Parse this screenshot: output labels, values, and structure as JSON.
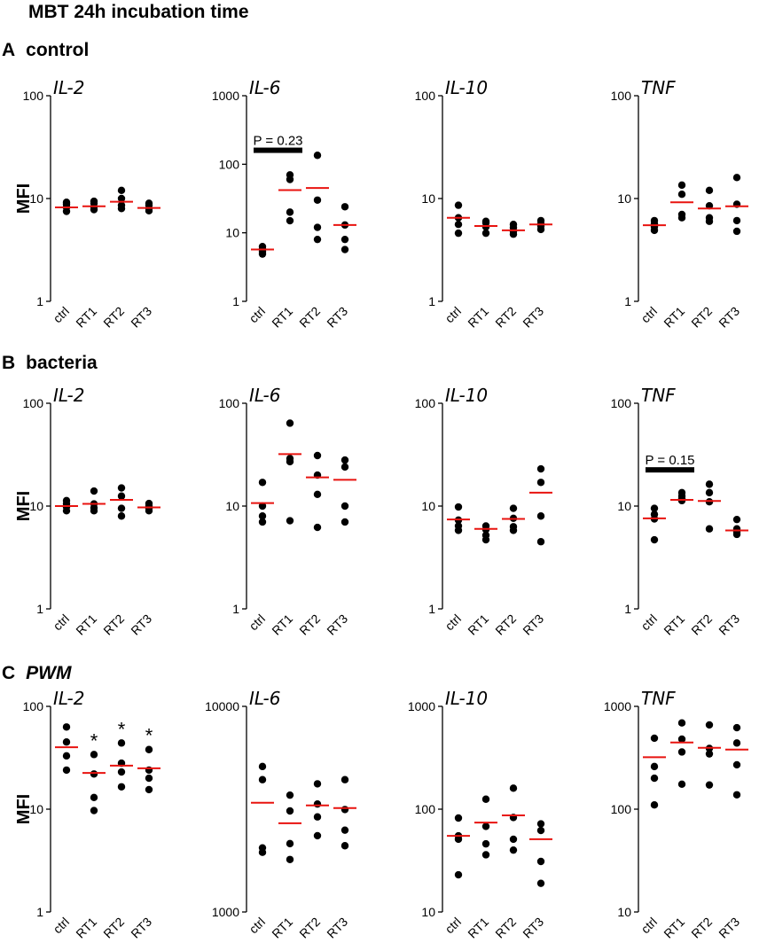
{
  "figure_title": "MBT 24h incubation time",
  "rows": [
    {
      "letter": "A",
      "condition": "control",
      "italic": false
    },
    {
      "letter": "B",
      "condition": "bacteria",
      "italic": false
    },
    {
      "letter": "C",
      "condition": "PWM",
      "italic": true
    }
  ],
  "chart_data": [
    {
      "type": "scatter",
      "row": "A",
      "title": "IL-2",
      "ylabel": "MFI",
      "yscale": "log",
      "ylim": [
        1,
        100
      ],
      "yticks": [
        1,
        10,
        100
      ],
      "categories": [
        "ctrl",
        "RT1",
        "RT2",
        "RT3"
      ],
      "points": [
        [
          7.5,
          8.2,
          8.8,
          9.2
        ],
        [
          7.8,
          8.3,
          9.0,
          9.4
        ],
        [
          8.0,
          8.6,
          10.0,
          12.0
        ],
        [
          7.6,
          8.0,
          8.6,
          9.0
        ]
      ],
      "medians": [
        8.2,
        8.4,
        9.3,
        8.1
      ],
      "annotations": [],
      "significance": []
    },
    {
      "type": "scatter",
      "row": "A",
      "title": "IL-6",
      "ylabel": "",
      "yscale": "log",
      "ylim": [
        1,
        1000
      ],
      "yticks": [
        1,
        10,
        100,
        1000
      ],
      "categories": [
        "ctrl",
        "RT1",
        "RT2",
        "RT3"
      ],
      "points": [
        [
          4.9,
          5.3,
          5.8,
          6.3
        ],
        [
          15,
          20,
          60,
          70
        ],
        [
          8,
          12,
          30,
          135
        ],
        [
          5.7,
          8,
          13,
          24
        ]
      ],
      "medians": [
        5.7,
        42,
        45,
        13
      ],
      "annotations": [
        {
          "text": "P = 0.23",
          "from": 0,
          "to": 1,
          "y": 160
        }
      ],
      "significance": []
    },
    {
      "type": "scatter",
      "row": "A",
      "title": "IL-10",
      "ylabel": "",
      "yscale": "log",
      "ylim": [
        1,
        100
      ],
      "yticks": [
        1,
        10,
        100
      ],
      "categories": [
        "ctrl",
        "RT1",
        "RT2",
        "RT3"
      ],
      "points": [
        [
          4.6,
          5.6,
          6.5,
          8.6
        ],
        [
          4.6,
          5.3,
          5.8,
          6.0
        ],
        [
          4.5,
          4.8,
          5.2,
          5.6
        ],
        [
          5.0,
          5.4,
          5.7,
          6.1
        ]
      ],
      "medians": [
        6.5,
        5.4,
        4.9,
        5.6
      ],
      "annotations": [],
      "significance": []
    },
    {
      "type": "scatter",
      "row": "A",
      "title": "TNF",
      "ylabel": "",
      "yscale": "log",
      "ylim": [
        1,
        100
      ],
      "yticks": [
        1,
        10,
        100
      ],
      "categories": [
        "ctrl",
        "RT1",
        "RT2",
        "RT3"
      ],
      "points": [
        [
          4.9,
          5.3,
          5.7,
          6.1
        ],
        [
          6.5,
          7,
          11,
          13.5
        ],
        [
          6,
          6.5,
          8.5,
          12
        ],
        [
          4.8,
          6.1,
          8.8,
          16
        ]
      ],
      "medians": [
        5.5,
        9.2,
        8.0,
        8.4
      ],
      "annotations": [],
      "significance": []
    },
    {
      "type": "scatter",
      "row": "B",
      "title": "IL-2",
      "ylabel": "MFI",
      "yscale": "log",
      "ylim": [
        1,
        100
      ],
      "yticks": [
        1,
        10,
        100
      ],
      "categories": [
        "ctrl",
        "RT1",
        "RT2",
        "RT3"
      ],
      "points": [
        [
          9,
          9.8,
          10.5,
          11.3
        ],
        [
          9,
          9.6,
          10.5,
          14
        ],
        [
          8,
          9.5,
          12.5,
          15
        ],
        [
          9,
          9.5,
          10,
          10.6
        ]
      ],
      "medians": [
        10,
        10.5,
        11.5,
        9.7
      ],
      "annotations": [],
      "significance": []
    },
    {
      "type": "scatter",
      "row": "B",
      "title": "IL-6",
      "ylabel": "",
      "yscale": "log",
      "ylim": [
        1,
        100
      ],
      "yticks": [
        1,
        10,
        100
      ],
      "categories": [
        "ctrl",
        "RT1",
        "RT2",
        "RT3"
      ],
      "points": [
        [
          7,
          8,
          10,
          17
        ],
        [
          7.2,
          27,
          29,
          64
        ],
        [
          6.2,
          13,
          20,
          31
        ],
        [
          7,
          10,
          24,
          28
        ]
      ],
      "medians": [
        10.7,
        32,
        19,
        18
      ],
      "annotations": [],
      "significance": []
    },
    {
      "type": "scatter",
      "row": "B",
      "title": "IL-10",
      "ylabel": "",
      "yscale": "log",
      "ylim": [
        1,
        100
      ],
      "yticks": [
        1,
        10,
        100
      ],
      "categories": [
        "ctrl",
        "RT1",
        "RT2",
        "RT3"
      ],
      "points": [
        [
          5.8,
          6.4,
          7.3,
          9.8
        ],
        [
          4.7,
          5.2,
          5.9,
          6.4
        ],
        [
          5.8,
          6.3,
          7.6,
          9.5
        ],
        [
          4.5,
          8,
          17,
          23
        ]
      ],
      "medians": [
        7.4,
        6.0,
        7.5,
        13.5
      ],
      "annotations": [],
      "significance": []
    },
    {
      "type": "scatter",
      "row": "B",
      "title": "TNF",
      "ylabel": "",
      "yscale": "log",
      "ylim": [
        1,
        100
      ],
      "yticks": [
        1,
        10,
        100
      ],
      "categories": [
        "ctrl",
        "RT1",
        "RT2",
        "RT3"
      ],
      "points": [
        [
          4.7,
          7.5,
          8.3,
          9.5
        ],
        [
          11.3,
          11.8,
          12.5,
          13.5
        ],
        [
          6,
          11,
          13.5,
          16.3
        ],
        [
          5.3,
          5.6,
          6.0,
          7.4
        ]
      ],
      "medians": [
        7.6,
        11.5,
        11.2,
        5.8
      ],
      "annotations": [
        {
          "text": "P = 0.15",
          "from": 0,
          "to": 1,
          "y": 22.5
        }
      ],
      "significance": []
    },
    {
      "type": "scatter",
      "row": "C",
      "title": "IL-2",
      "ylabel": "MFI",
      "yscale": "log",
      "ylim": [
        1,
        100
      ],
      "yticks": [
        1,
        10,
        100
      ],
      "categories": [
        "ctrl",
        "RT1",
        "RT2",
        "RT3"
      ],
      "points": [
        [
          24,
          33,
          45,
          63
        ],
        [
          9.7,
          13,
          22,
          34
        ],
        [
          16.5,
          23,
          28,
          44
        ],
        [
          15.5,
          20,
          24,
          38
        ]
      ],
      "medians": [
        40,
        22.5,
        26.5,
        25
      ],
      "annotations": [],
      "significance": [
        "",
        "*",
        "*",
        "*"
      ]
    },
    {
      "type": "scatter",
      "row": "C",
      "title": "IL-6",
      "ylabel": "",
      "yscale": "log",
      "ylim": [
        1000,
        10000
      ],
      "yticks": [
        1000,
        10000
      ],
      "categories": [
        "ctrl",
        "RT1",
        "RT2",
        "RT3"
      ],
      "points": [
        [
          1950,
          2050,
          4400,
          5100
        ],
        [
          1800,
          2150,
          3100,
          3700
        ],
        [
          2350,
          2900,
          3350,
          4200
        ],
        [
          2100,
          2500,
          3150,
          4400
        ]
      ],
      "medians": [
        3400,
        2700,
        3300,
        3200
      ],
      "annotations": [],
      "significance": []
    },
    {
      "type": "scatter",
      "row": "C",
      "title": "IL-10",
      "ylabel": "",
      "yscale": "log",
      "ylim": [
        10,
        1000
      ],
      "yticks": [
        10,
        100,
        1000
      ],
      "categories": [
        "ctrl",
        "RT1",
        "RT2",
        "RT3"
      ],
      "points": [
        [
          23,
          51,
          55,
          82
        ],
        [
          36,
          46,
          68,
          125
        ],
        [
          40,
          51,
          83,
          160
        ],
        [
          19,
          31,
          62,
          72
        ]
      ],
      "medians": [
        55,
        74,
        87,
        51
      ],
      "annotations": [],
      "significance": []
    },
    {
      "type": "scatter",
      "row": "C",
      "title": "TNF",
      "ylabel": "",
      "yscale": "log",
      "ylim": [
        10,
        1000
      ],
      "yticks": [
        10,
        100,
        1000
      ],
      "categories": [
        "ctrl",
        "RT1",
        "RT2",
        "RT3"
      ],
      "points": [
        [
          110,
          200,
          260,
          490
        ],
        [
          175,
          360,
          480,
          690
        ],
        [
          172,
          345,
          390,
          660
        ],
        [
          138,
          270,
          440,
          620
        ]
      ],
      "medians": [
        320,
        445,
        395,
        380
      ],
      "annotations": [],
      "significance": []
    }
  ],
  "colors": {
    "median": "#e8130f",
    "point": "#000000",
    "axis": "#000000",
    "annotation_bar": "#000000"
  }
}
